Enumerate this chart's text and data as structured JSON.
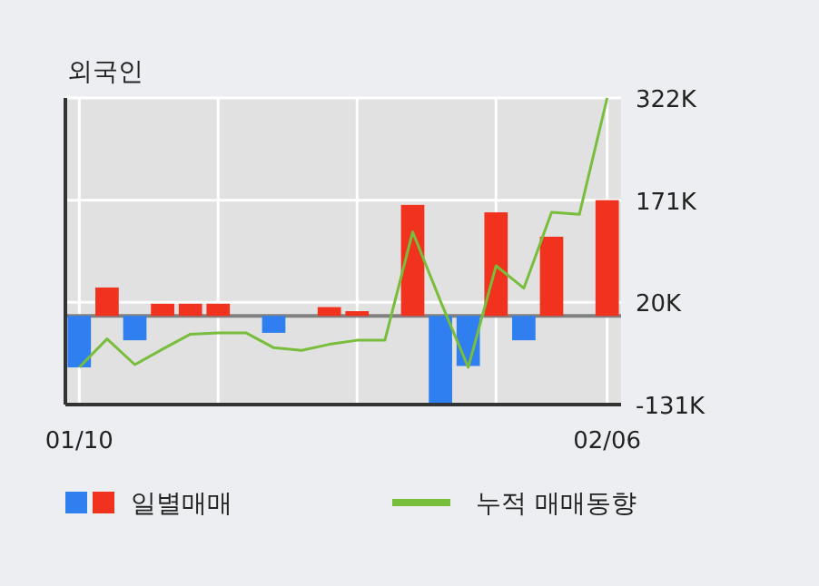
{
  "chart_data": {
    "type": "bar",
    "title": "외국인",
    "categories": [
      "01/10",
      null,
      null,
      null,
      null,
      null,
      null,
      null,
      null,
      null,
      null,
      null,
      null,
      null,
      null,
      null,
      null,
      null,
      null,
      "02/06"
    ],
    "series": [
      {
        "name": "일별매매",
        "colors": [
          "#2f7ff0",
          "#f0321e",
          "#2f7ff0",
          "#f0321e",
          "#f0321e",
          "#f0321e",
          "#f0321e",
          "#2f7ff0",
          "#f0321e",
          "#f0321e",
          "#f0321e",
          "#f0321e",
          "#f0321e",
          "#2f7ff0",
          "#2f7ff0",
          "#f0321e",
          "#2f7ff0",
          "#f0321e",
          "#f0321e",
          "#f0321e"
        ],
        "values": [
          -76,
          42,
          -36,
          18,
          18,
          18,
          0,
          -25,
          0,
          13,
          7,
          0,
          164,
          -130,
          -74,
          153,
          -36,
          117,
          0,
          171
        ]
      },
      {
        "name": "누적 매매동향",
        "type": "line",
        "color": "#78be3c",
        "values": [
          -76,
          -34,
          -72,
          -49,
          -27,
          -25,
          -25,
          -47,
          -51,
          -42,
          -36,
          -36,
          124,
          22,
          -76,
          74,
          41,
          153,
          150,
          322
        ]
      }
    ],
    "ylim": [
      -131,
      322
    ],
    "yticks": [
      {
        "value": -131,
        "label": "-131K"
      },
      {
        "value": 20,
        "label": "20K"
      },
      {
        "value": 171,
        "label": "171K"
      },
      {
        "value": 322,
        "label": "322K"
      }
    ],
    "grid": true,
    "legend": "bottom",
    "marker": "none"
  }
}
